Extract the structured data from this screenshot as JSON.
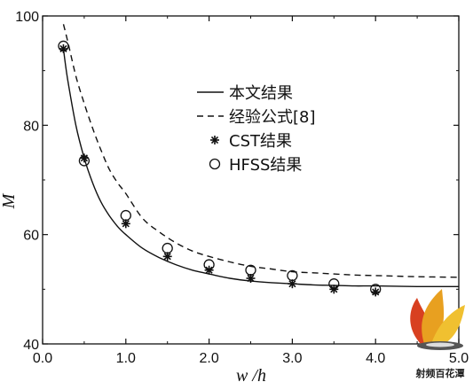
{
  "chart_data": {
    "type": "line",
    "xlabel": "w /h",
    "ylabel": "M",
    "xlim": [
      0,
      5
    ],
    "ylim": [
      40,
      100
    ],
    "xticks": [
      "0.0",
      "1.0",
      "2.0",
      "3.0",
      "4.0",
      "5.0"
    ],
    "yticks": [
      "40",
      "60",
      "80",
      "100"
    ],
    "series": [
      {
        "name": "本文结果",
        "style": "solid",
        "x": [
          0.25,
          0.3,
          0.4,
          0.5,
          0.6,
          0.7,
          0.8,
          0.9,
          1.0,
          1.2,
          1.4,
          1.6,
          1.8,
          2.0,
          2.25,
          2.5,
          2.75,
          3.0,
          3.25,
          3.5,
          3.75,
          4.0,
          4.5,
          5.0
        ],
        "y": [
          94.0,
          88.5,
          80.0,
          74.0,
          69.5,
          66.0,
          63.5,
          61.5,
          60.0,
          57.5,
          55.8,
          54.5,
          53.5,
          52.8,
          52.0,
          51.5,
          51.2,
          51.0,
          50.8,
          50.7,
          50.6,
          50.6,
          50.5,
          50.5
        ]
      },
      {
        "name": "经验公式[8]",
        "style": "dashed",
        "x": [
          0.25,
          0.3,
          0.4,
          0.5,
          0.6,
          0.7,
          0.8,
          0.9,
          1.0,
          1.2,
          1.4,
          1.6,
          1.8,
          2.0,
          2.25,
          2.5,
          2.75,
          3.0,
          3.25,
          3.5,
          3.75,
          4.0,
          4.5,
          5.0
        ],
        "y": [
          98.5,
          95.5,
          89.0,
          84.0,
          79.5,
          75.5,
          72.0,
          69.5,
          67.5,
          63.0,
          60.5,
          58.5,
          57.0,
          56.0,
          55.0,
          54.2,
          53.7,
          53.2,
          53.0,
          52.8,
          52.6,
          52.5,
          52.3,
          52.2
        ]
      },
      {
        "name": "CST结果",
        "style": "asterisk",
        "x": [
          0.25,
          0.5,
          1.0,
          1.5,
          2.0,
          2.5,
          3.0,
          3.5,
          4.0
        ],
        "y": [
          94.0,
          74.0,
          62.0,
          56.0,
          53.5,
          52.0,
          51.0,
          50.0,
          49.5
        ]
      },
      {
        "name": "HFSS结果",
        "style": "circle",
        "x": [
          0.25,
          0.5,
          1.0,
          1.5,
          2.0,
          2.5,
          3.0,
          3.5,
          4.0
        ],
        "y": [
          94.5,
          73.5,
          63.5,
          57.5,
          54.5,
          53.5,
          52.5,
          51.0,
          50.0
        ]
      }
    ]
  },
  "watermark": {
    "text": "射频百花潭",
    "colors": [
      "#e8a020",
      "#f0c030",
      "#d84020"
    ]
  }
}
